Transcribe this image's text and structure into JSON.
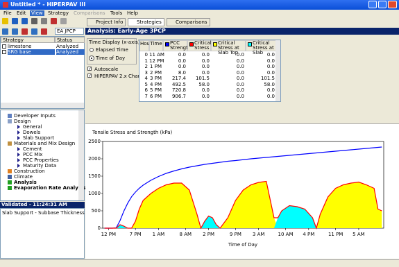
{
  "window": {
    "title": "Untitled * - HIPERPAV III"
  },
  "menu": [
    "File",
    "Edit",
    "View",
    "Strategy",
    "Comparisons",
    "Tools",
    "Help"
  ],
  "toolbar": {
    "strategy_type": "EA JPCP"
  },
  "tabs": [
    "Project Info",
    "Strategies",
    "Comparisons"
  ],
  "strategy_table": {
    "headers": [
      "Strategy",
      "Status"
    ],
    "rows": [
      [
        "limestone",
        "Analyzed"
      ],
      [
        "SRG base",
        "Analyzed"
      ]
    ]
  },
  "tree": [
    {
      "label": "Developer Inputs",
      "children": []
    },
    {
      "label": "Design",
      "children": [
        "General",
        "Dowels",
        "Slab Support"
      ]
    },
    {
      "label": "Materials and Mix Design",
      "children": [
        "Cement",
        "PCC Mix",
        "PCC Properties",
        "Maturity Data"
      ]
    },
    {
      "label": "Construction",
      "children": []
    },
    {
      "label": "Climate",
      "children": []
    },
    {
      "label": "Analysis",
      "children": []
    },
    {
      "label": "Evaporation Rate Analysis",
      "children": []
    }
  ],
  "validation": {
    "title": "Validated - 11:24:31 AM",
    "message": "Slab Support - Subbase Thickness"
  },
  "analysis": {
    "title": "Analysis: Early-Age 3PCP",
    "time_display": {
      "label": "Time Display (x-axis)",
      "options": [
        "Elapsed Time",
        "Time of Day"
      ]
    },
    "checkboxes": [
      "Autoscale",
      "HIPERPAV 2.x Chart"
    ]
  },
  "results_table": {
    "headers": [
      "Hour",
      "Time"
    ],
    "rows": [
      [
        0,
        "11 AM",
        "0.0",
        "0.0",
        "0.0",
        "0.0"
      ],
      [
        1,
        "12 PM",
        "0.0",
        "0.0",
        "0.0",
        "0.0"
      ],
      [
        2,
        "1 PM",
        "0.0",
        "0.0",
        "0.0",
        "0.0"
      ],
      [
        3,
        "2 PM",
        "8.0",
        "0.0",
        "0.0",
        "0.0"
      ],
      [
        4,
        "3 PM",
        "217.4",
        "101.5",
        "0.0",
        "101.5"
      ],
      [
        5,
        "4 PM",
        "492.5",
        "58.0",
        "0.0",
        "58.0"
      ],
      [
        6,
        "5 PM",
        "720.8",
        "0.0",
        "0.0",
        "0.0"
      ],
      [
        7,
        "6 PM",
        "906.7",
        "0.0",
        "0.0",
        "0.0"
      ]
    ]
  },
  "chart_data": {
    "type": "area",
    "title": "Tensile Stress and Strength (kPa)",
    "x_label": "Time of Day",
    "grid": false,
    "x": [
      0,
      1,
      2,
      3,
      4,
      5,
      6,
      7,
      8,
      9,
      10,
      12,
      14,
      16,
      18,
      20,
      22,
      24,
      25,
      26,
      27,
      28,
      29,
      30,
      32,
      34,
      36,
      38,
      40,
      42,
      44,
      45,
      46,
      48,
      50,
      52,
      54,
      55,
      56,
      58,
      60,
      62,
      64,
      66,
      68,
      70,
      71,
      72
    ],
    "xlim": [
      -0.5,
      72.5
    ],
    "xticks": [
      {
        "value": 1,
        "label": "12 PM"
      },
      {
        "value": 8,
        "label": "7 PM"
      },
      {
        "value": 14,
        "label": "1 AM"
      },
      {
        "value": 21,
        "label": "8 AM"
      },
      {
        "value": 27,
        "label": "2 PM"
      },
      {
        "value": 34,
        "label": "9 PM"
      },
      {
        "value": 40,
        "label": "3 AM"
      },
      {
        "value": 47,
        "label": "10 AM"
      },
      {
        "value": 53,
        "label": "4 PM"
      },
      {
        "value": 60,
        "label": "11 PM"
      },
      {
        "value": 66,
        "label": "5 AM"
      }
    ],
    "ylim": [
      0,
      2500
    ],
    "yticks": [
      0,
      500,
      1000,
      1500,
      2000,
      2500
    ],
    "series": [
      {
        "name": "PCC Strength",
        "color": "#0000ff",
        "style": "line",
        "values": [
          0,
          0,
          0,
          8.0,
          217.4,
          492.5,
          720.8,
          906.7,
          1040,
          1150,
          1240,
          1380,
          1490,
          1580,
          1650,
          1710,
          1760,
          1800,
          1820,
          1840,
          1855,
          1870,
          1885,
          1900,
          1930,
          1950,
          1975,
          2000,
          2020,
          2040,
          2060,
          2070,
          2080,
          2100,
          2120,
          2140,
          2160,
          2170,
          2180,
          2200,
          2220,
          2240,
          2260,
          2280,
          2300,
          2320,
          2330,
          2340
        ]
      },
      {
        "name": "Critical Stress",
        "color": "#ff0000",
        "style": "line",
        "values": [
          0,
          0,
          0,
          0,
          101.5,
          58.0,
          0,
          0,
          200,
          550,
          800,
          1000,
          1150,
          1250,
          1300,
          1300,
          1100,
          400,
          0,
          200,
          350,
          300,
          100,
          0,
          300,
          800,
          1100,
          1250,
          1320,
          1350,
          300,
          300,
          500,
          650,
          620,
          550,
          300,
          0,
          400,
          900,
          1150,
          1250,
          1300,
          1330,
          1250,
          1150,
          550,
          500
        ]
      },
      {
        "name": "Critical Stress at Slab Top",
        "color": "#ffff00",
        "style": "area",
        "values": [
          0,
          0,
          0,
          0,
          0,
          0,
          0,
          0,
          200,
          550,
          800,
          1000,
          1150,
          1250,
          1300,
          1300,
          1100,
          400,
          0,
          0,
          0,
          0,
          0,
          0,
          300,
          800,
          1100,
          1250,
          1320,
          1350,
          300,
          0,
          0,
          0,
          0,
          0,
          0,
          0,
          400,
          900,
          1150,
          1250,
          1300,
          1330,
          1250,
          1150,
          550,
          500
        ]
      },
      {
        "name": "Critical Stress at Slab",
        "color": "#00ffff",
        "style": "area",
        "values": [
          0,
          0,
          0,
          0,
          101.5,
          58.0,
          0,
          0,
          0,
          0,
          0,
          0,
          0,
          0,
          0,
          0,
          0,
          0,
          0,
          200,
          350,
          300,
          100,
          0,
          0,
          0,
          0,
          0,
          0,
          0,
          0,
          300,
          500,
          650,
          620,
          550,
          300,
          0,
          0,
          0,
          0,
          0,
          0,
          0,
          0,
          0,
          0,
          0
        ]
      }
    ]
  }
}
